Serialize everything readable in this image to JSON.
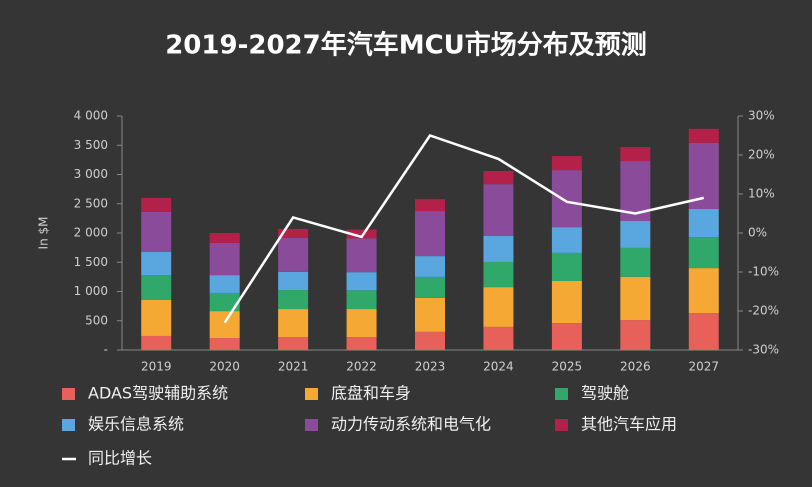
{
  "chart_data": {
    "type": "bar",
    "stacked": true,
    "title": "2019-2027年汽车MCU市场分布及预测",
    "y_label": "In $M",
    "categories": [
      "2019",
      "2020",
      "2021",
      "2022",
      "2023",
      "2024",
      "2025",
      "2026",
      "2027"
    ],
    "series": [
      {
        "name": "ADAS驾驶辅助系统",
        "color": "#e8605a",
        "values": [
          240,
          205,
          220,
          220,
          310,
          395,
          460,
          510,
          630
        ]
      },
      {
        "name": "底盘和车身",
        "color": "#f5a833",
        "values": [
          615,
          460,
          480,
          480,
          580,
          680,
          720,
          740,
          770
        ]
      },
      {
        "name": "驾驶舱",
        "color": "#2fa86a",
        "values": [
          425,
          310,
          325,
          320,
          360,
          430,
          480,
          495,
          530
        ]
      },
      {
        "name": "娱乐信息系统",
        "color": "#5aa7e0",
        "values": [
          395,
          305,
          310,
          310,
          355,
          445,
          440,
          460,
          480
        ]
      },
      {
        "name": "动力传动系统和电气化",
        "color": "#8a4b9a",
        "values": [
          685,
          550,
          580,
          580,
          770,
          885,
          975,
          1025,
          1130
        ]
      },
      {
        "name": "其他汽车应用",
        "color": "#b3204a",
        "values": [
          240,
          170,
          155,
          150,
          205,
          225,
          240,
          240,
          240
        ]
      },
      {
        "name": "同比增长",
        "color": "#ffffff",
        "type": "line",
        "axis": "y2",
        "values": [
          null,
          -23,
          4,
          -1,
          25,
          19,
          8,
          5,
          9
        ]
      }
    ],
    "ylim": [
      0,
      4000
    ],
    "yticks": [
      {
        "value": 0,
        "label": "-"
      },
      500,
      {
        "value": 1000,
        "label": "1 000"
      },
      {
        "value": 1500,
        "label": "1 500"
      },
      {
        "value": 2000,
        "label": "2 000"
      },
      {
        "value": 2500,
        "label": "2 500"
      },
      {
        "value": 3000,
        "label": "3 000"
      },
      {
        "value": 3500,
        "label": "3 500"
      },
      {
        "value": 4000,
        "label": "4 000"
      }
    ],
    "y2lim": [
      -30,
      30
    ],
    "y2ticks": [
      {
        "value": -30,
        "label": "-30%"
      },
      {
        "value": -20,
        "label": "-20%"
      },
      {
        "value": -10,
        "label": "-10%"
      },
      {
        "value": 0,
        "label": "0%"
      },
      {
        "value": 10,
        "label": "10%"
      },
      {
        "value": 20,
        "label": "20%"
      },
      {
        "value": 30,
        "label": "30%"
      }
    ],
    "grid": false
  }
}
